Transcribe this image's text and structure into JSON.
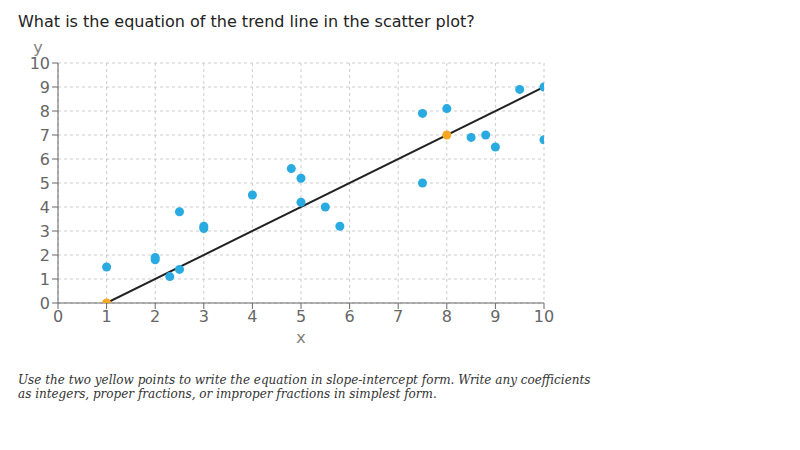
{
  "chart_data": {
    "type": "scatter",
    "title": "What is the equation of the trend line in the scatter plot?",
    "subtitle": "Use the two yellow points to write the equation in slope-intercept form. Write any coefficients\nas integers, proper fractions, or improper fractions in simplest form.",
    "xlabel": "x",
    "ylabel": "y",
    "xlim": [
      0,
      10
    ],
    "ylim": [
      0,
      10
    ],
    "xticks": [
      0,
      1,
      2,
      3,
      4,
      5,
      6,
      7,
      8,
      9,
      10
    ],
    "yticks": [
      0,
      1,
      2,
      3,
      4,
      5,
      6,
      7,
      8,
      9,
      10
    ],
    "grid": true,
    "series": [
      {
        "type": "line",
        "marker": "none",
        "color": "#222222",
        "x": [
          1,
          10
        ],
        "values": [
          0,
          9
        ]
      },
      {
        "type": "scatter",
        "color": "#29ABE2",
        "x": [
          1,
          2,
          2,
          2.3,
          2.5,
          2.5,
          3,
          3,
          4,
          4.8,
          5,
          5,
          5.5,
          5.8,
          7.5,
          7.5,
          8,
          8.5,
          8.8,
          9,
          9.5,
          10,
          10
        ],
        "values": [
          1.5,
          1.9,
          1.8,
          1.1,
          1.4,
          3.8,
          3.2,
          3.1,
          4.5,
          5.6,
          5.2,
          4.2,
          4.0,
          3.2,
          7.9,
          5.0,
          8.1,
          6.9,
          7.0,
          6.5,
          8.9,
          9.0,
          6.8
        ]
      },
      {
        "type": "scatter",
        "color": "#F5A623",
        "x": [
          1,
          8
        ],
        "values": [
          0,
          7
        ]
      }
    ]
  }
}
